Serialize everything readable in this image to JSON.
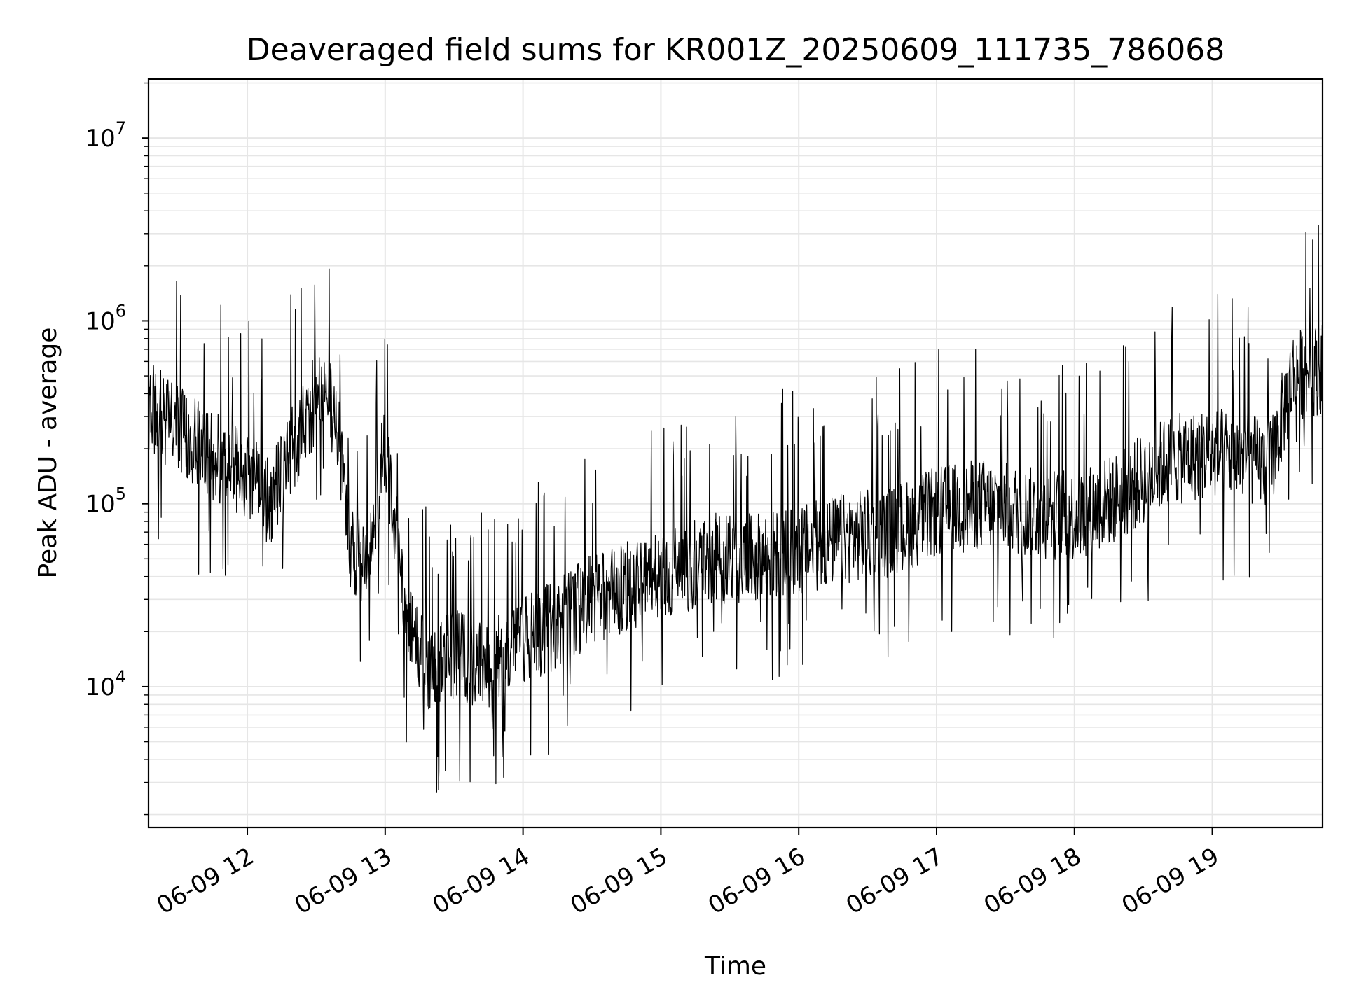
{
  "chart_data": {
    "type": "line",
    "title": "Deaveraged field sums for KR001Z_20250609_111735_786068",
    "xlabel": "Time",
    "ylabel": "Peak ADU - average",
    "yscale": "log",
    "ylim": [
      1700,
      21000000
    ],
    "xlim": [
      "2025-06-09 11:17",
      "2025-06-09 19:48"
    ],
    "x_ticks": [
      "06-09 12",
      "06-09 13",
      "06-09 14",
      "06-09 15",
      "06-09 16",
      "06-09 17",
      "06-09 18",
      "06-09 19"
    ],
    "y_ticks": [
      {
        "base": "10",
        "exp": "4"
      },
      {
        "base": "10",
        "exp": "5"
      },
      {
        "base": "10",
        "exp": "6"
      },
      {
        "base": "10",
        "exp": "7"
      }
    ],
    "grid": true,
    "line_color": "#000000",
    "series": [
      {
        "x": [
          "2025-06-09 11:17",
          "2025-06-09 11:30",
          "2025-06-09 11:45",
          "2025-06-09 12:00",
          "2025-06-09 12:10",
          "2025-06-09 12:20",
          "2025-06-09 12:30",
          "2025-06-09 12:38",
          "2025-06-09 12:45",
          "2025-06-09 12:52",
          "2025-06-09 13:00",
          "2025-06-09 13:10",
          "2025-06-09 13:20",
          "2025-06-09 13:30",
          "2025-06-09 13:40",
          "2025-06-09 13:50",
          "2025-06-09 14:00",
          "2025-06-09 14:15",
          "2025-06-09 14:30",
          "2025-06-09 14:45",
          "2025-06-09 15:00",
          "2025-06-09 15:20",
          "2025-06-09 15:40",
          "2025-06-09 16:00",
          "2025-06-09 16:20",
          "2025-06-09 16:40",
          "2025-06-09 17:00",
          "2025-06-09 17:20",
          "2025-06-09 17:40",
          "2025-06-09 18:00",
          "2025-06-09 18:20",
          "2025-06-09 18:40",
          "2025-06-09 19:00",
          "2025-06-09 19:15",
          "2025-06-09 19:25",
          "2025-06-09 19:35",
          "2025-06-09 19:48"
        ],
        "values": [
          350000,
          250000,
          180000,
          150000,
          100000,
          200000,
          380000,
          330000,
          60000,
          40000,
          220000,
          20000,
          12000,
          15000,
          13000,
          14000,
          18000,
          22000,
          30000,
          35000,
          40000,
          50000,
          50000,
          55000,
          65000,
          70000,
          90000,
          100000,
          90000,
          85000,
          110000,
          170000,
          190000,
          180000,
          160000,
          500000,
          550000
        ]
      }
    ]
  }
}
